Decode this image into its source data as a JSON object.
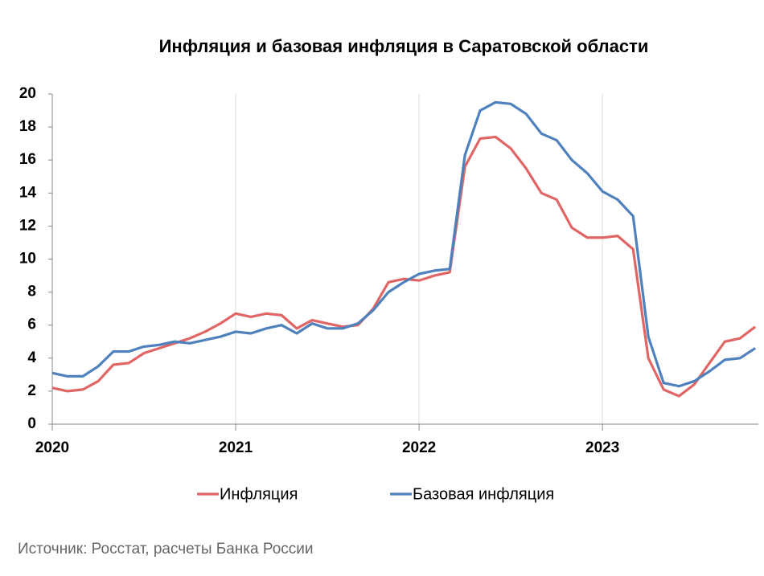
{
  "chart_data": {
    "type": "line",
    "title": "Инфляция и базовая инфляция в Саратовской области",
    "source": "Источник: Росстат, расчеты Банка России",
    "x": [
      2020,
      2020.083,
      2020.167,
      2020.25,
      2020.333,
      2020.417,
      2020.5,
      2020.583,
      2020.667,
      2020.75,
      2020.833,
      2020.917,
      2021,
      2021.083,
      2021.167,
      2021.25,
      2021.333,
      2021.417,
      2021.5,
      2021.583,
      2021.667,
      2021.75,
      2021.833,
      2021.917,
      2022,
      2022.083,
      2022.167,
      2022.25,
      2022.333,
      2022.417,
      2022.5,
      2022.583,
      2022.667,
      2022.75,
      2022.833,
      2022.917,
      2023,
      2023.083,
      2023.167,
      2023.25,
      2023.333,
      2023.417,
      2023.5,
      2023.583,
      2023.667,
      2023.75,
      2023.833
    ],
    "series": [
      {
        "name": "Инфляция",
        "color": "#e06666",
        "values": [
          2.2,
          2.0,
          2.1,
          2.6,
          3.6,
          3.7,
          4.3,
          4.6,
          4.9,
          5.2,
          5.6,
          6.1,
          6.7,
          6.5,
          6.7,
          6.6,
          5.8,
          6.3,
          6.1,
          5.9,
          6.0,
          7.0,
          8.6,
          8.8,
          8.7,
          9.0,
          9.2,
          15.6,
          17.3,
          17.4,
          16.7,
          15.5,
          14.0,
          13.6,
          11.9,
          11.3,
          11.3,
          11.4,
          10.6,
          4.0,
          2.1,
          1.7,
          2.4,
          3.7,
          5.0,
          5.2,
          5.9
        ]
      },
      {
        "name": "Базовая инфляция",
        "color": "#4f81bd",
        "values": [
          3.1,
          2.9,
          2.9,
          3.5,
          4.4,
          4.4,
          4.7,
          4.8,
          5.0,
          4.9,
          5.1,
          5.3,
          5.6,
          5.5,
          5.8,
          6.0,
          5.5,
          6.1,
          5.8,
          5.8,
          6.1,
          6.9,
          8.0,
          8.6,
          9.1,
          9.3,
          9.4,
          16.3,
          19.0,
          19.5,
          19.4,
          18.8,
          17.6,
          17.2,
          16.0,
          15.2,
          14.1,
          13.6,
          12.6,
          5.3,
          2.5,
          2.3,
          2.6,
          3.2,
          3.9,
          4.0,
          4.6
        ]
      }
    ],
    "xlim": [
      2020,
      2023.85
    ],
    "xticks": [
      2020,
      2021,
      2022,
      2023
    ],
    "ylim": [
      0,
      20
    ],
    "yticks": [
      0,
      2,
      4,
      6,
      8,
      10,
      12,
      14,
      16,
      18,
      20
    ],
    "grid": "x"
  }
}
